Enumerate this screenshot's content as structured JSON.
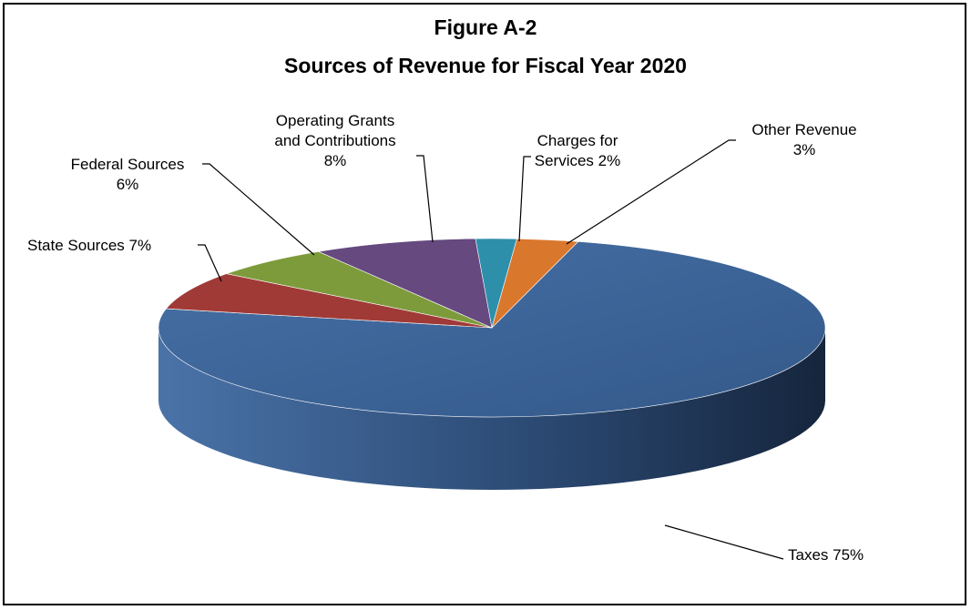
{
  "chart_data": {
    "type": "pie",
    "three_d": true,
    "title": "Figure A-2",
    "subtitle": "Sources of Revenue for Fiscal Year 2020",
    "legend": "none",
    "slices": [
      {
        "label_lines": [
          "Taxes 75%"
        ],
        "value": 75,
        "color": "#3E6496"
      },
      {
        "label_lines": [
          "State Sources 7%"
        ],
        "value": 7,
        "color": "#A03A37"
      },
      {
        "label_lines": [
          "Federal Sources",
          "6%"
        ],
        "value": 6,
        "color": "#7E9B3C"
      },
      {
        "label_lines": [
          "Operating Grants",
          "and Contributions",
          "8%"
        ],
        "value": 8,
        "color": "#65497F"
      },
      {
        "label_lines": [
          "Charges for",
          "Services 2%"
        ],
        "value": 2,
        "color": "#2E8FAB"
      },
      {
        "label_lines": [
          "Other Revenue",
          "3%"
        ],
        "value": 3,
        "color": "#D9772D"
      }
    ]
  }
}
